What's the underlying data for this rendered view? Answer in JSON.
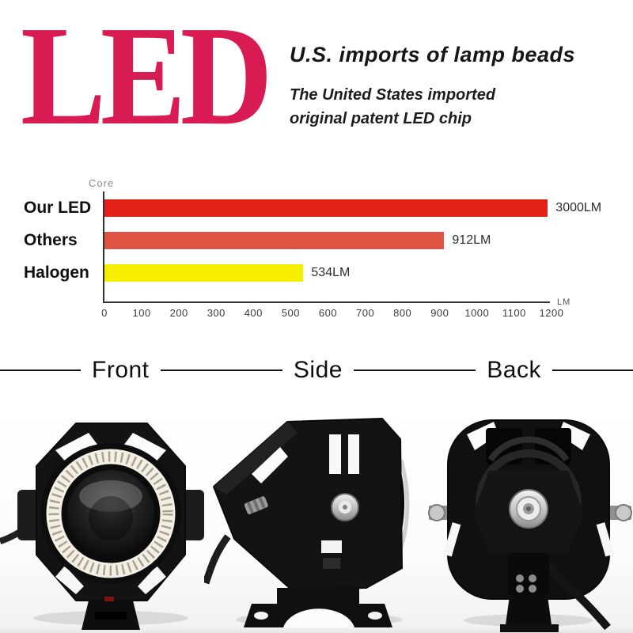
{
  "header": {
    "logo": "LED",
    "logo_color": "#d91b53",
    "title": "U.S. imports of lamp beads",
    "subtitle_line1": "The United States imported",
    "subtitle_line2": "original patent LED chip"
  },
  "chart_data": {
    "type": "bar",
    "orientation": "horizontal",
    "title": "",
    "axis_top_label": "Core",
    "axis_unit_label": "LM",
    "categories": [
      "Our LED",
      "Others",
      "Halogen"
    ],
    "values": [
      3000,
      912,
      534
    ],
    "value_labels": [
      "3000LM",
      "912LM",
      "534LM"
    ],
    "bar_colors": [
      "#e32017",
      "#dd5542",
      "#f5ee00"
    ],
    "xlim": [
      0,
      1200
    ],
    "ticks": [
      0,
      100,
      200,
      300,
      400,
      500,
      600,
      700,
      800,
      900,
      1000,
      1100,
      1200
    ],
    "bar_display_cap": 1190,
    "grid": false,
    "legend": "none",
    "note": "Our LED bar (3000LM) is clipped at the right edge of the 0-1200 axis"
  },
  "views": {
    "labels": [
      "Front",
      "Side",
      "Back"
    ]
  }
}
